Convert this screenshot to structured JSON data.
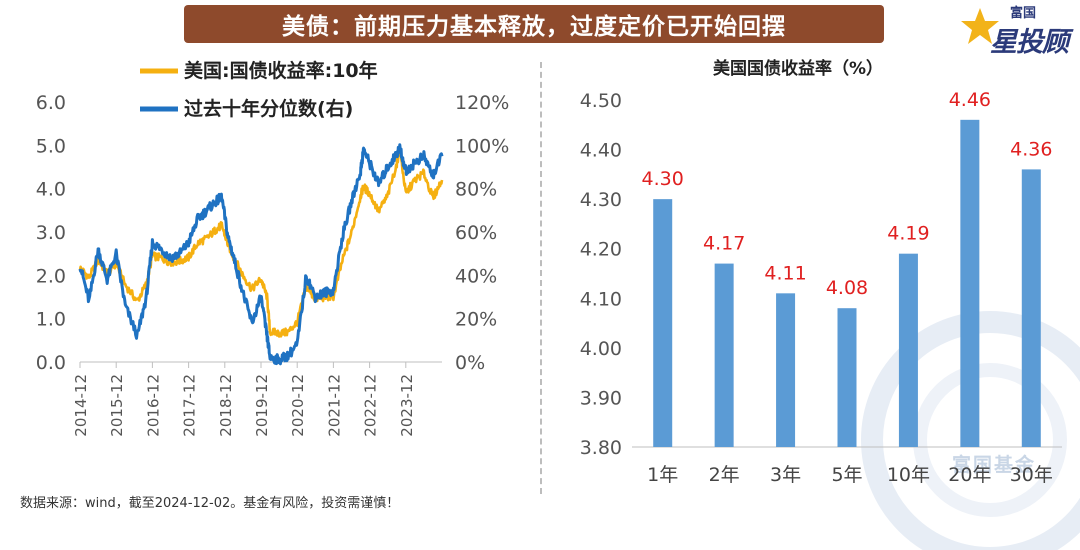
{
  "header": {
    "title": "美债：前期压力基本释放，过度定价已开始回摆"
  },
  "brand": {
    "top": "富国",
    "main": "星投顾",
    "watermark": "富国基金"
  },
  "footer": {
    "source": "数据来源：wind，截至2024-12-02。基金有风险，投资需谨慎！"
  },
  "colors": {
    "banner": "#8e4a2c",
    "yield_line": "#f5b011",
    "percentile_line": "#1f72c2",
    "bar": "#5b9bd5",
    "bar_label": "#e02020"
  },
  "chart_data": [
    {
      "type": "line",
      "x_ticks": [
        "2014-12",
        "2015-12",
        "2016-12",
        "2017-12",
        "2018-12",
        "2019-12",
        "2020-12",
        "2021-12",
        "2022-12",
        "2023-12"
      ],
      "y_left": {
        "ticks": [
          "0.0",
          "1.0",
          "2.0",
          "3.0",
          "4.0",
          "5.0",
          "6.0"
        ],
        "lim": [
          0,
          6
        ]
      },
      "y_right": {
        "ticks": [
          "0%",
          "20%",
          "40%",
          "60%",
          "80%",
          "100%",
          "120%"
        ],
        "lim": [
          0,
          120
        ]
      },
      "x_range": [
        "2014-12",
        "2024-12"
      ],
      "legend_position": "top",
      "series": [
        {
          "name": "美国:国债收益率:10年",
          "axis": "left",
          "x": [
            "2014-12",
            "2015-03",
            "2015-06",
            "2015-09",
            "2015-12",
            "2016-03",
            "2016-07",
            "2016-10",
            "2016-12",
            "2017-03",
            "2017-06",
            "2017-09",
            "2017-12",
            "2018-03",
            "2018-06",
            "2018-09",
            "2018-11",
            "2019-01",
            "2019-03",
            "2019-06",
            "2019-09",
            "2019-12",
            "2020-02",
            "2020-03",
            "2020-06",
            "2020-09",
            "2020-12",
            "2021-03",
            "2021-06",
            "2021-09",
            "2021-12",
            "2022-03",
            "2022-06",
            "2022-09",
            "2022-10",
            "2022-12",
            "2023-03",
            "2023-06",
            "2023-09",
            "2023-10",
            "2023-12",
            "2024-03",
            "2024-06",
            "2024-09",
            "2024-12"
          ],
          "values": [
            2.17,
            1.95,
            2.35,
            2.05,
            2.27,
            1.78,
            1.4,
            1.8,
            2.45,
            2.4,
            2.3,
            2.33,
            2.41,
            2.74,
            2.85,
            3.05,
            3.15,
            2.72,
            2.41,
            2.0,
            1.68,
            1.92,
            1.5,
            0.7,
            0.66,
            0.69,
            0.92,
            1.74,
            1.45,
            1.49,
            1.51,
            2.34,
            2.98,
            3.83,
            4.05,
            3.88,
            3.48,
            3.84,
            4.57,
            4.93,
            3.88,
            4.2,
            4.36,
            3.78,
            4.2
          ]
        },
        {
          "name": "过去十年分位数(右)",
          "axis": "right",
          "x": [
            "2014-12",
            "2015-03",
            "2015-06",
            "2015-09",
            "2015-12",
            "2016-03",
            "2016-07",
            "2016-10",
            "2016-12",
            "2017-03",
            "2017-06",
            "2017-09",
            "2017-12",
            "2018-03",
            "2018-06",
            "2018-09",
            "2018-11",
            "2019-01",
            "2019-03",
            "2019-06",
            "2019-09",
            "2019-12",
            "2020-02",
            "2020-03",
            "2020-06",
            "2020-09",
            "2020-12",
            "2021-03",
            "2021-06",
            "2021-09",
            "2021-12",
            "2022-03",
            "2022-06",
            "2022-09",
            "2022-10",
            "2022-12",
            "2023-03",
            "2023-06",
            "2023-09",
            "2023-10",
            "2023-12",
            "2024-03",
            "2024-06",
            "2024-09",
            "2024-12"
          ],
          "values": [
            45,
            28,
            52,
            38,
            50,
            26,
            12,
            30,
            55,
            52,
            48,
            50,
            55,
            66,
            70,
            74,
            76,
            58,
            48,
            32,
            18,
            30,
            12,
            2,
            1,
            3,
            8,
            40,
            30,
            32,
            33,
            58,
            74,
            88,
            98,
            92,
            82,
            90,
            96,
            99,
            88,
            92,
            95,
            86,
            95
          ]
        }
      ]
    },
    {
      "type": "bar",
      "title": "美国国债收益率（%）",
      "categories": [
        "1年",
        "2年",
        "3年",
        "5年",
        "10年",
        "20年",
        "30年"
      ],
      "values": [
        4.3,
        4.17,
        4.11,
        4.08,
        4.19,
        4.46,
        4.36
      ],
      "labels": [
        "4.30",
        "4.17",
        "4.11",
        "4.08",
        "4.19",
        "4.46",
        "4.36"
      ],
      "y_ticks": [
        "3.80",
        "3.90",
        "4.00",
        "4.10",
        "4.20",
        "4.30",
        "4.40",
        "4.50"
      ],
      "ylim": [
        3.8,
        4.5
      ]
    }
  ]
}
